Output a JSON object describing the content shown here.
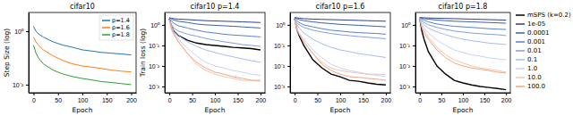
{
  "chart_data": [
    {
      "type": "line",
      "title": "cifar10",
      "xlabel": "Epoch",
      "ylabel": "Step Size (log)",
      "log": "y",
      "legend": "upper right",
      "xlim": [
        -10,
        210
      ],
      "ylim": [
        0.005,
        5
      ],
      "xticks": [
        0,
        50,
        100,
        150,
        200
      ],
      "yticks": [
        {
          "value": 1,
          "label": "10⁰"
        },
        {
          "value": 0.01,
          "label": "10⁻²"
        }
      ],
      "x": [
        0,
        5,
        10,
        20,
        40,
        60,
        80,
        100,
        120,
        140,
        160,
        180,
        200
      ],
      "series": [
        {
          "name": "p=1.4",
          "color": "#1f77b4",
          "values": [
            1.5,
            1.0,
            0.8,
            0.6,
            0.4,
            0.3,
            0.25,
            0.2,
            0.18,
            0.16,
            0.15,
            0.14,
            0.13
          ]
        },
        {
          "name": "p=1.6",
          "color": "#ff7f0e",
          "values": [
            0.6,
            0.4,
            0.3,
            0.2,
            0.12,
            0.08,
            0.06,
            0.05,
            0.045,
            0.04,
            0.035,
            0.032,
            0.03
          ]
        },
        {
          "name": "p=1.8",
          "color": "#2ca02c",
          "values": [
            0.3,
            0.15,
            0.1,
            0.06,
            0.035,
            0.025,
            0.02,
            0.017,
            0.015,
            0.013,
            0.012,
            0.011,
            0.01
          ]
        }
      ]
    },
    {
      "type": "line",
      "title": "cifar10 p=1.4",
      "xlabel": "Epoch",
      "ylabel": "Train loss (log)",
      "log": "y",
      "xlim": [
        -10,
        210
      ],
      "ylim": [
        0.0005,
        4
      ],
      "xticks": [
        0,
        50,
        100,
        150,
        200
      ],
      "yticks": [
        {
          "value": 1,
          "label": "10⁰"
        },
        {
          "value": 0.1,
          "label": "10⁻¹"
        },
        {
          "value": 0.01,
          "label": "10⁻²"
        },
        {
          "value": 0.001,
          "label": "10⁻³"
        }
      ],
      "x": [
        0,
        5,
        10,
        20,
        40,
        60,
        80,
        100,
        120,
        140,
        160,
        180,
        200
      ],
      "series": [
        {
          "name": "mSPS (k=0.2)",
          "color": "#000000",
          "values": [
            2.0,
            0.8,
            0.5,
            0.3,
            0.18,
            0.13,
            0.11,
            0.1,
            0.09,
            0.08,
            0.075,
            0.07,
            0.06
          ]
        },
        {
          "name": "1e-05",
          "color": "#2b3f8f",
          "values": [
            2.2,
            2.1,
            2.0,
            1.9,
            1.8,
            1.7,
            1.6,
            1.55,
            1.5,
            1.45,
            1.4,
            1.35,
            1.3
          ]
        },
        {
          "name": "0.0001",
          "color": "#3a5fb0",
          "values": [
            2.2,
            1.9,
            1.7,
            1.5,
            1.3,
            1.1,
            1.0,
            0.95,
            0.9,
            0.85,
            0.8,
            0.75,
            0.7
          ]
        },
        {
          "name": "0.001",
          "color": "#5b7fcc",
          "values": [
            2.0,
            1.5,
            1.2,
            0.9,
            0.7,
            0.55,
            0.45,
            0.4,
            0.35,
            0.32,
            0.3,
            0.28,
            0.26
          ]
        },
        {
          "name": "0.01",
          "color": "#7f9fe0",
          "values": [
            1.8,
            1.0,
            0.7,
            0.5,
            0.35,
            0.28,
            0.22,
            0.18,
            0.15,
            0.13,
            0.11,
            0.1,
            0.09
          ]
        },
        {
          "name": "0.1",
          "color": "#a6bdeb",
          "values": [
            1.8,
            0.8,
            0.5,
            0.3,
            0.15,
            0.09,
            0.06,
            0.045,
            0.035,
            0.028,
            0.022,
            0.018,
            0.015
          ]
        },
        {
          "name": "1.0",
          "color": "#c8d4ee",
          "values": [
            1.8,
            0.7,
            0.4,
            0.2,
            0.07,
            0.03,
            0.015,
            0.01,
            0.008,
            0.006,
            0.005,
            0.004,
            0.0035
          ]
        },
        {
          "name": "10.0",
          "color": "#f2c4b0",
          "values": [
            1.8,
            0.6,
            0.35,
            0.15,
            0.04,
            0.012,
            0.006,
            0.004,
            0.003,
            0.0025,
            0.002,
            0.002,
            0.0018
          ]
        },
        {
          "name": "100.0",
          "color": "#f4a582",
          "values": [
            1.8,
            0.6,
            0.35,
            0.15,
            0.04,
            0.015,
            0.008,
            0.005,
            0.004,
            0.003,
            0.0025,
            0.002,
            0.002
          ]
        }
      ]
    },
    {
      "type": "line",
      "title": "cifar10 p=1.6",
      "xlabel": "Epoch",
      "log": "y",
      "xlim": [
        -10,
        210
      ],
      "ylim": [
        0.0005,
        4
      ],
      "xticks": [
        0,
        50,
        100,
        150,
        200
      ],
      "yticks": [
        {
          "value": 1,
          "label": "10⁰"
        },
        {
          "value": 0.1,
          "label": "10⁻¹"
        },
        {
          "value": 0.01,
          "label": "10⁻²"
        },
        {
          "value": 0.001,
          "label": "10⁻³"
        }
      ],
      "x": [
        0,
        5,
        10,
        20,
        40,
        60,
        80,
        100,
        120,
        140,
        160,
        180,
        200
      ],
      "series": [
        {
          "name": "mSPS (k=0.2)",
          "color": "#000000",
          "values": [
            2.0,
            0.6,
            0.3,
            0.1,
            0.02,
            0.008,
            0.004,
            0.003,
            0.002,
            0.0018,
            0.0015,
            0.0013,
            0.0012
          ]
        },
        {
          "name": "1e-05",
          "color": "#2b3f8f",
          "values": [
            2.3,
            2.2,
            2.1,
            2.0,
            1.9,
            1.85,
            1.8,
            1.75,
            1.7,
            1.65,
            1.6,
            1.55,
            1.5
          ]
        },
        {
          "name": "0.0001",
          "color": "#3a5fb0",
          "values": [
            2.2,
            2.0,
            1.8,
            1.6,
            1.4,
            1.25,
            1.15,
            1.05,
            1.0,
            0.95,
            0.9,
            0.85,
            0.8
          ]
        },
        {
          "name": "0.001",
          "color": "#5b7fcc",
          "values": [
            2.1,
            1.6,
            1.3,
            1.0,
            0.8,
            0.65,
            0.55,
            0.5,
            0.45,
            0.42,
            0.4,
            0.38,
            0.35
          ]
        },
        {
          "name": "0.01",
          "color": "#7f9fe0",
          "values": [
            2.0,
            1.3,
            1.0,
            0.75,
            0.55,
            0.45,
            0.38,
            0.33,
            0.3,
            0.27,
            0.25,
            0.23,
            0.21
          ]
        },
        {
          "name": "0.1",
          "color": "#a6bdeb",
          "values": [
            1.9,
            1.0,
            0.7,
            0.4,
            0.2,
            0.12,
            0.08,
            0.06,
            0.05,
            0.04,
            0.035,
            0.03,
            0.026
          ]
        },
        {
          "name": "1.0",
          "color": "#c8d4ee",
          "values": [
            1.8,
            0.7,
            0.4,
            0.2,
            0.06,
            0.025,
            0.012,
            0.008,
            0.006,
            0.005,
            0.004,
            0.0035,
            0.003
          ]
        },
        {
          "name": "10.0",
          "color": "#f2c4b0",
          "values": [
            1.8,
            0.6,
            0.35,
            0.15,
            0.04,
            0.015,
            0.008,
            0.006,
            0.005,
            0.0045,
            0.004,
            0.004,
            0.0038
          ]
        },
        {
          "name": "100.0",
          "color": "#f4a582",
          "values": [
            1.8,
            0.6,
            0.35,
            0.15,
            0.04,
            0.012,
            0.006,
            0.004,
            0.003,
            0.0028,
            0.0025,
            0.0023,
            0.002
          ]
        }
      ]
    },
    {
      "type": "line",
      "title": "cifar10 p=1.8",
      "xlabel": "Epoch",
      "log": "y",
      "legend": "right",
      "xlim": [
        -10,
        210
      ],
      "ylim": [
        0.0005,
        4
      ],
      "xticks": [
        0,
        50,
        100,
        150,
        200
      ],
      "yticks": [
        {
          "value": 1,
          "label": "10⁰"
        },
        {
          "value": 0.1,
          "label": "10⁻¹"
        },
        {
          "value": 0.01,
          "label": "10⁻²"
        },
        {
          "value": 0.001,
          "label": "10⁻³"
        }
      ],
      "x": [
        0,
        5,
        10,
        20,
        40,
        60,
        80,
        100,
        120,
        140,
        160,
        180,
        200
      ],
      "series": [
        {
          "name": "mSPS (k=0.2)",
          "color": "#000000",
          "values": [
            2.0,
            0.5,
            0.2,
            0.05,
            0.01,
            0.004,
            0.002,
            0.0015,
            0.0012,
            0.001,
            0.0009,
            0.0008,
            0.0007
          ]
        },
        {
          "name": "1e-05",
          "color": "#2b3f8f",
          "values": [
            2.3,
            2.25,
            2.2,
            2.15,
            2.1,
            2.05,
            2.0,
            1.95,
            1.9,
            1.85,
            1.8,
            1.75,
            1.7
          ]
        },
        {
          "name": "0.0001",
          "color": "#3a5fb0",
          "values": [
            2.3,
            2.1,
            2.0,
            1.9,
            1.7,
            1.6,
            1.5,
            1.45,
            1.4,
            1.35,
            1.3,
            1.25,
            1.2
          ]
        },
        {
          "name": "0.001",
          "color": "#5b7fcc",
          "values": [
            2.2,
            1.9,
            1.7,
            1.4,
            1.1,
            0.95,
            0.85,
            0.8,
            0.75,
            0.7,
            0.65,
            0.62,
            0.6
          ]
        },
        {
          "name": "0.01",
          "color": "#7f9fe0",
          "values": [
            2.1,
            1.6,
            1.3,
            1.0,
            0.75,
            0.6,
            0.5,
            0.45,
            0.4,
            0.37,
            0.35,
            0.33,
            0.3
          ]
        },
        {
          "name": "0.1",
          "color": "#a6bdeb",
          "values": [
            2.0,
            1.3,
            1.0,
            0.7,
            0.45,
            0.33,
            0.25,
            0.2,
            0.17,
            0.15,
            0.13,
            0.12,
            0.11
          ]
        },
        {
          "name": "1.0",
          "color": "#c8d4ee",
          "values": [
            1.9,
            1.0,
            0.7,
            0.4,
            0.18,
            0.1,
            0.06,
            0.045,
            0.035,
            0.03,
            0.025,
            0.022,
            0.02
          ]
        },
        {
          "name": "10.0",
          "color": "#f2c4b0",
          "values": [
            1.8,
            0.8,
            0.5,
            0.25,
            0.08,
            0.035,
            0.02,
            0.014,
            0.01,
            0.008,
            0.007,
            0.006,
            0.005
          ]
        },
        {
          "name": "100.0",
          "color": "#f4a582",
          "values": [
            1.8,
            0.7,
            0.4,
            0.2,
            0.06,
            0.025,
            0.014,
            0.01,
            0.008,
            0.007,
            0.006,
            0.005,
            0.0045
          ]
        }
      ]
    }
  ]
}
